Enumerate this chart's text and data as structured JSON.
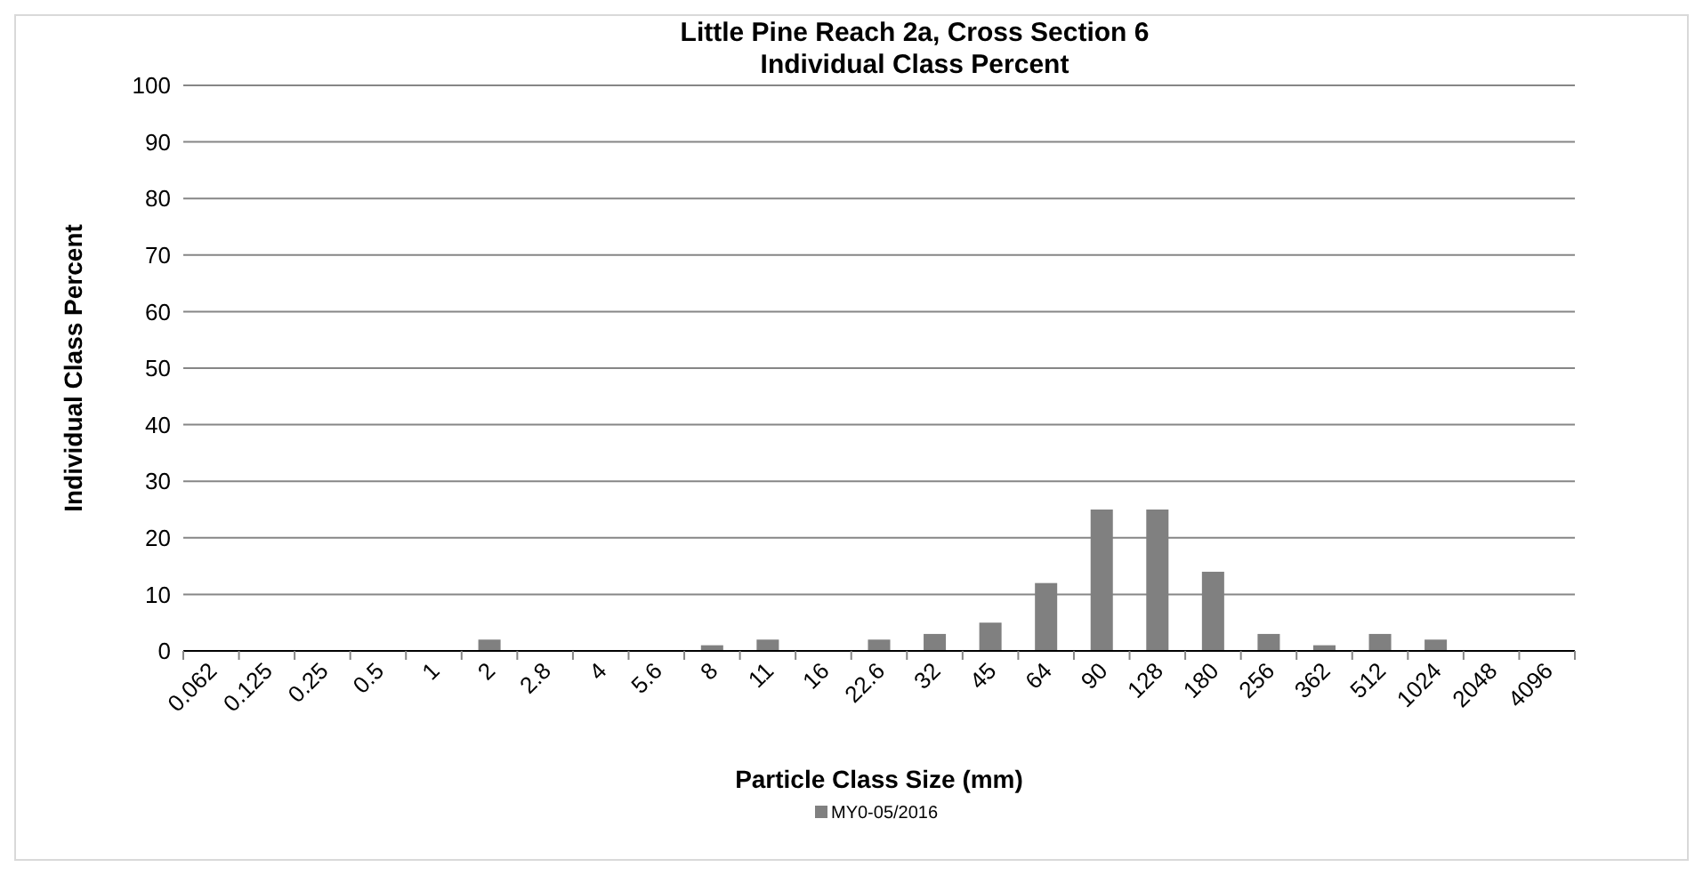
{
  "chart_data": {
    "type": "bar",
    "title": "Little Pine Reach 2a, Cross Section 6",
    "subtitle": "Individual Class Percent",
    "xlabel": "Particle Class Size (mm)",
    "ylabel": "Individual Class Percent",
    "categories": [
      "0.062",
      "0.125",
      "0.25",
      "0.5",
      "1",
      "2",
      "2.8",
      "4",
      "5.6",
      "8",
      "11",
      "16",
      "22.6",
      "32",
      "45",
      "64",
      "90",
      "128",
      "180",
      "256",
      "362",
      "512",
      "1024",
      "2048",
      "4096"
    ],
    "series": [
      {
        "name": "MY0-05/2016",
        "color": "#808080",
        "values": [
          0,
          0,
          0,
          0,
          0,
          2,
          0,
          0,
          0,
          1,
          2,
          0,
          2,
          3,
          5,
          12,
          25,
          25,
          14,
          3,
          1,
          3,
          2,
          0,
          0
        ]
      }
    ],
    "ylim": [
      0,
      100
    ],
    "yticks": [
      0,
      10,
      20,
      30,
      40,
      50,
      60,
      70,
      80,
      90,
      100
    ],
    "grid": "y",
    "legend": "bottom"
  }
}
